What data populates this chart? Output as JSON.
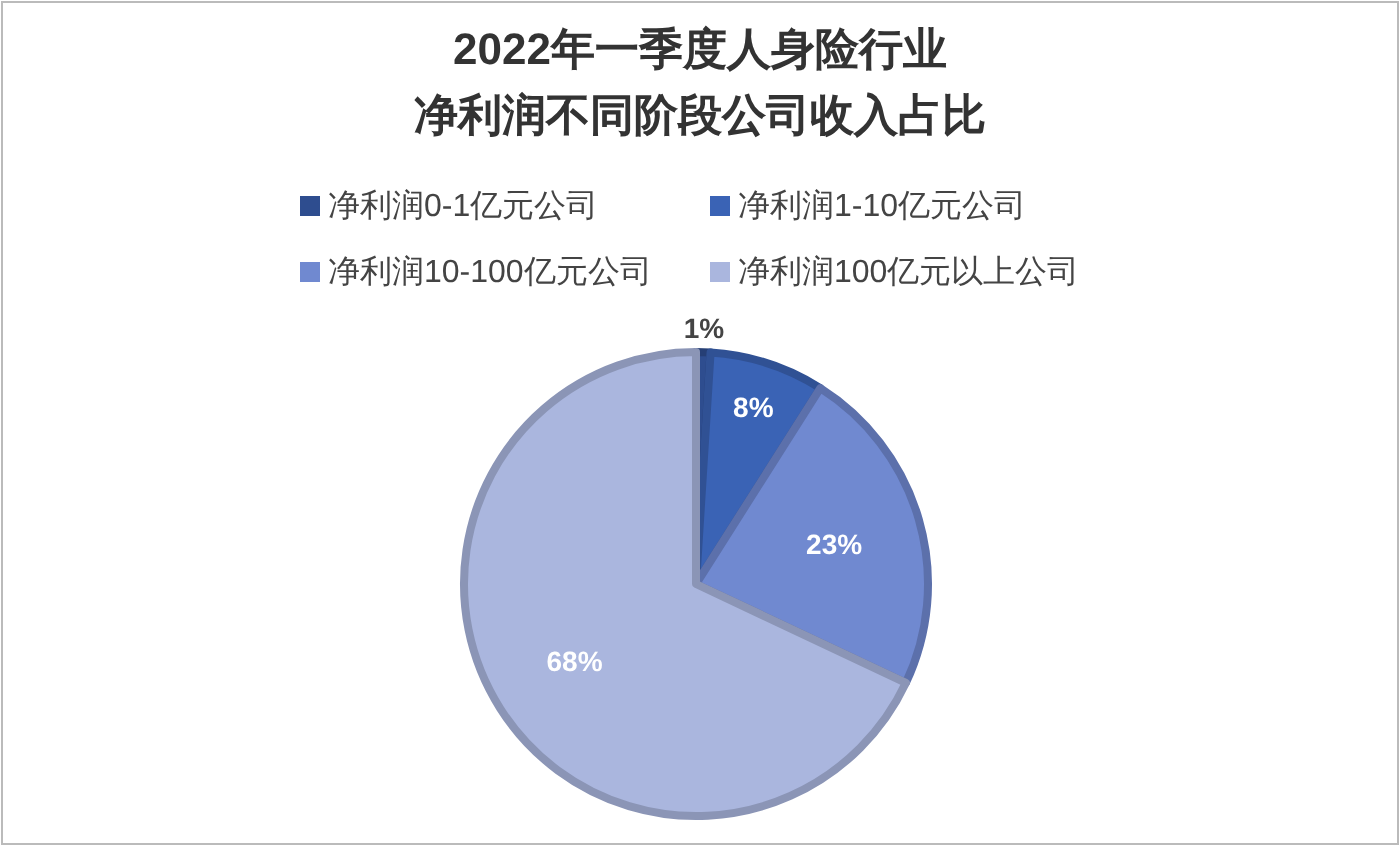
{
  "chart_data": {
    "type": "pie",
    "title": "2022年一季度人身险行业净利润不同阶段公司收入占比",
    "categories": [
      "净利润0-1亿元公司",
      "净利润1-10亿元公司",
      "净利润10-100亿元公司",
      "净利润100亿元以上公司"
    ],
    "values": [
      1,
      8,
      23,
      68
    ],
    "value_labels": [
      "1%",
      "8%",
      "23%",
      "68%"
    ],
    "colors": [
      "#2e4d8f",
      "#3a63b5",
      "#7089d0",
      "#aab6de"
    ],
    "legend": "top"
  }
}
